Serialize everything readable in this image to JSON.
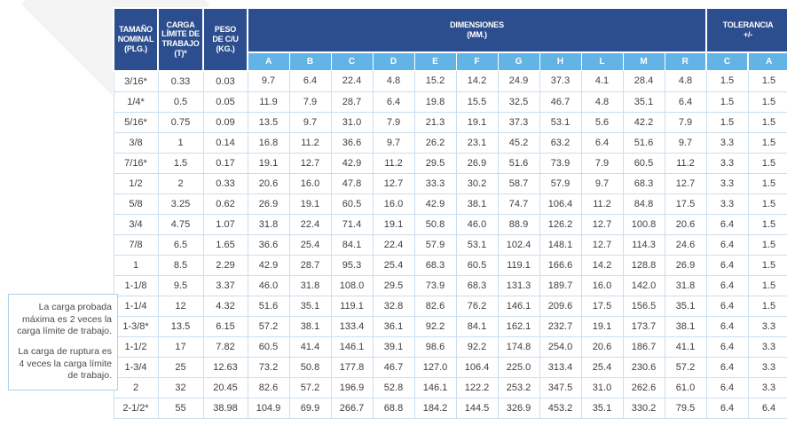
{
  "note": {
    "paragraphs": [
      "La carga probada máxima es 2 veces la carga límite de trabajo.",
      "La carga de ruptura es 4 veces la carga límite de trabajo."
    ]
  },
  "table": {
    "colors": {
      "header_bg": "#2d4e8e",
      "subheader_bg": "#62b3e6",
      "row_border": "#cbdeef",
      "text": "#3e3e3e"
    },
    "header": {
      "col_tamano": "TAMAÑO\nNOMINAL\n(PLG.)",
      "col_carga": "CARGA\nLÍMITE DE\nTRABAJO\n(T)*",
      "col_peso": "PESO\nDE C/U\n(KG.)",
      "col_dimensiones": "DIMENSIONES\n(MM.)",
      "col_tolerancia": "TOLERANCIA\n+/-",
      "dim_letters": [
        "A",
        "B",
        "C",
        "D",
        "E",
        "F",
        "G",
        "H",
        "L",
        "M",
        "R"
      ],
      "tol_letters": [
        "C",
        "A"
      ]
    },
    "rows": [
      {
        "size": "3/16*",
        "load": "0.33",
        "weight": "0.03",
        "dims": [
          "9.7",
          "6.4",
          "22.4",
          "4.8",
          "15.2",
          "14.2",
          "24.9",
          "37.3",
          "4.1",
          "28.4",
          "4.8"
        ],
        "tol": [
          "1.5",
          "1.5"
        ]
      },
      {
        "size": "1/4*",
        "load": "0.5",
        "weight": "0.05",
        "dims": [
          "11.9",
          "7.9",
          "28.7",
          "6.4",
          "19.8",
          "15.5",
          "32.5",
          "46.7",
          "4.8",
          "35.1",
          "6.4"
        ],
        "tol": [
          "1.5",
          "1.5"
        ]
      },
      {
        "size": "5/16*",
        "load": "0.75",
        "weight": "0.09",
        "dims": [
          "13.5",
          "9.7",
          "31.0",
          "7.9",
          "21.3",
          "19.1",
          "37.3",
          "53.1",
          "5.6",
          "42.2",
          "7.9"
        ],
        "tol": [
          "1.5",
          "1.5"
        ]
      },
      {
        "size": "3/8",
        "load": "1",
        "weight": "0.14",
        "dims": [
          "16.8",
          "11.2",
          "36.6",
          "9.7",
          "26.2",
          "23.1",
          "45.2",
          "63.2",
          "6.4",
          "51.6",
          "9.7"
        ],
        "tol": [
          "3.3",
          "1.5"
        ]
      },
      {
        "size": "7/16*",
        "load": "1.5",
        "weight": "0.17",
        "dims": [
          "19.1",
          "12.7",
          "42.9",
          "11.2",
          "29.5",
          "26.9",
          "51.6",
          "73.9",
          "7.9",
          "60.5",
          "11.2"
        ],
        "tol": [
          "3.3",
          "1.5"
        ]
      },
      {
        "size": "1/2",
        "load": "2",
        "weight": "0.33",
        "dims": [
          "20.6",
          "16.0",
          "47.8",
          "12.7",
          "33.3",
          "30.2",
          "58.7",
          "57.9",
          "9.7",
          "68.3",
          "12.7"
        ],
        "tol": [
          "3.3",
          "1.5"
        ]
      },
      {
        "size": "5/8",
        "load": "3.25",
        "weight": "0.62",
        "dims": [
          "26.9",
          "19.1",
          "60.5",
          "16.0",
          "42.9",
          "38.1",
          "74.7",
          "106.4",
          "11.2",
          "84.8",
          "17.5"
        ],
        "tol": [
          "3.3",
          "1.5"
        ]
      },
      {
        "size": "3/4",
        "load": "4.75",
        "weight": "1.07",
        "dims": [
          "31.8",
          "22.4",
          "71.4",
          "19.1",
          "50.8",
          "46.0",
          "88.9",
          "126.2",
          "12.7",
          "100.8",
          "20.6"
        ],
        "tol": [
          "6.4",
          "1.5"
        ]
      },
      {
        "size": "7/8",
        "load": "6.5",
        "weight": "1.65",
        "dims": [
          "36.6",
          "25.4",
          "84.1",
          "22.4",
          "57.9",
          "53.1",
          "102.4",
          "148.1",
          "12.7",
          "114.3",
          "24.6"
        ],
        "tol": [
          "6.4",
          "1.5"
        ]
      },
      {
        "size": "1",
        "load": "8.5",
        "weight": "2.29",
        "dims": [
          "42.9",
          "28.7",
          "95.3",
          "25.4",
          "68.3",
          "60.5",
          "119.1",
          "166.6",
          "14.2",
          "128.8",
          "26.9"
        ],
        "tol": [
          "6.4",
          "1.5"
        ]
      },
      {
        "size": "1-1/8",
        "load": "9.5",
        "weight": "3.37",
        "dims": [
          "46.0",
          "31.8",
          "108.0",
          "29.5",
          "73.9",
          "68.3",
          "131.3",
          "189.7",
          "16.0",
          "142.0",
          "31.8"
        ],
        "tol": [
          "6.4",
          "1.5"
        ]
      },
      {
        "size": "1-1/4",
        "load": "12",
        "weight": "4.32",
        "dims": [
          "51.6",
          "35.1",
          "119.1",
          "32.8",
          "82.6",
          "76.2",
          "146.1",
          "209.6",
          "17.5",
          "156.5",
          "35.1"
        ],
        "tol": [
          "6.4",
          "1.5"
        ]
      },
      {
        "size": "1-3/8*",
        "load": "13.5",
        "weight": "6.15",
        "dims": [
          "57.2",
          "38.1",
          "133.4",
          "36.1",
          "92.2",
          "84.1",
          "162.1",
          "232.7",
          "19.1",
          "173.7",
          "38.1"
        ],
        "tol": [
          "6.4",
          "3.3"
        ]
      },
      {
        "size": "1-1/2",
        "load": "17",
        "weight": "7.82",
        "dims": [
          "60.5",
          "41.4",
          "146.1",
          "39.1",
          "98.6",
          "92.2",
          "174.8",
          "254.0",
          "20.6",
          "186.7",
          "41.1"
        ],
        "tol": [
          "6.4",
          "3.3"
        ]
      },
      {
        "size": "1-3/4",
        "load": "25",
        "weight": "12.63",
        "dims": [
          "73.2",
          "50.8",
          "177.8",
          "46.7",
          "127.0",
          "106.4",
          "225.0",
          "313.4",
          "25.4",
          "230.6",
          "57.2"
        ],
        "tol": [
          "6.4",
          "3.3"
        ]
      },
      {
        "size": "2",
        "load": "32",
        "weight": "20.45",
        "dims": [
          "82.6",
          "57.2",
          "196.9",
          "52.8",
          "146.1",
          "122.2",
          "253.2",
          "347.5",
          "31.0",
          "262.6",
          "61.0"
        ],
        "tol": [
          "6.4",
          "3.3"
        ]
      },
      {
        "size": "2-1/2*",
        "load": "55",
        "weight": "38.98",
        "dims": [
          "104.9",
          "69.9",
          "266.7",
          "68.8",
          "184.2",
          "144.5",
          "326.9",
          "453.2",
          "35.1",
          "330.2",
          "79.5"
        ],
        "tol": [
          "6.4",
          "6.4"
        ]
      }
    ]
  }
}
